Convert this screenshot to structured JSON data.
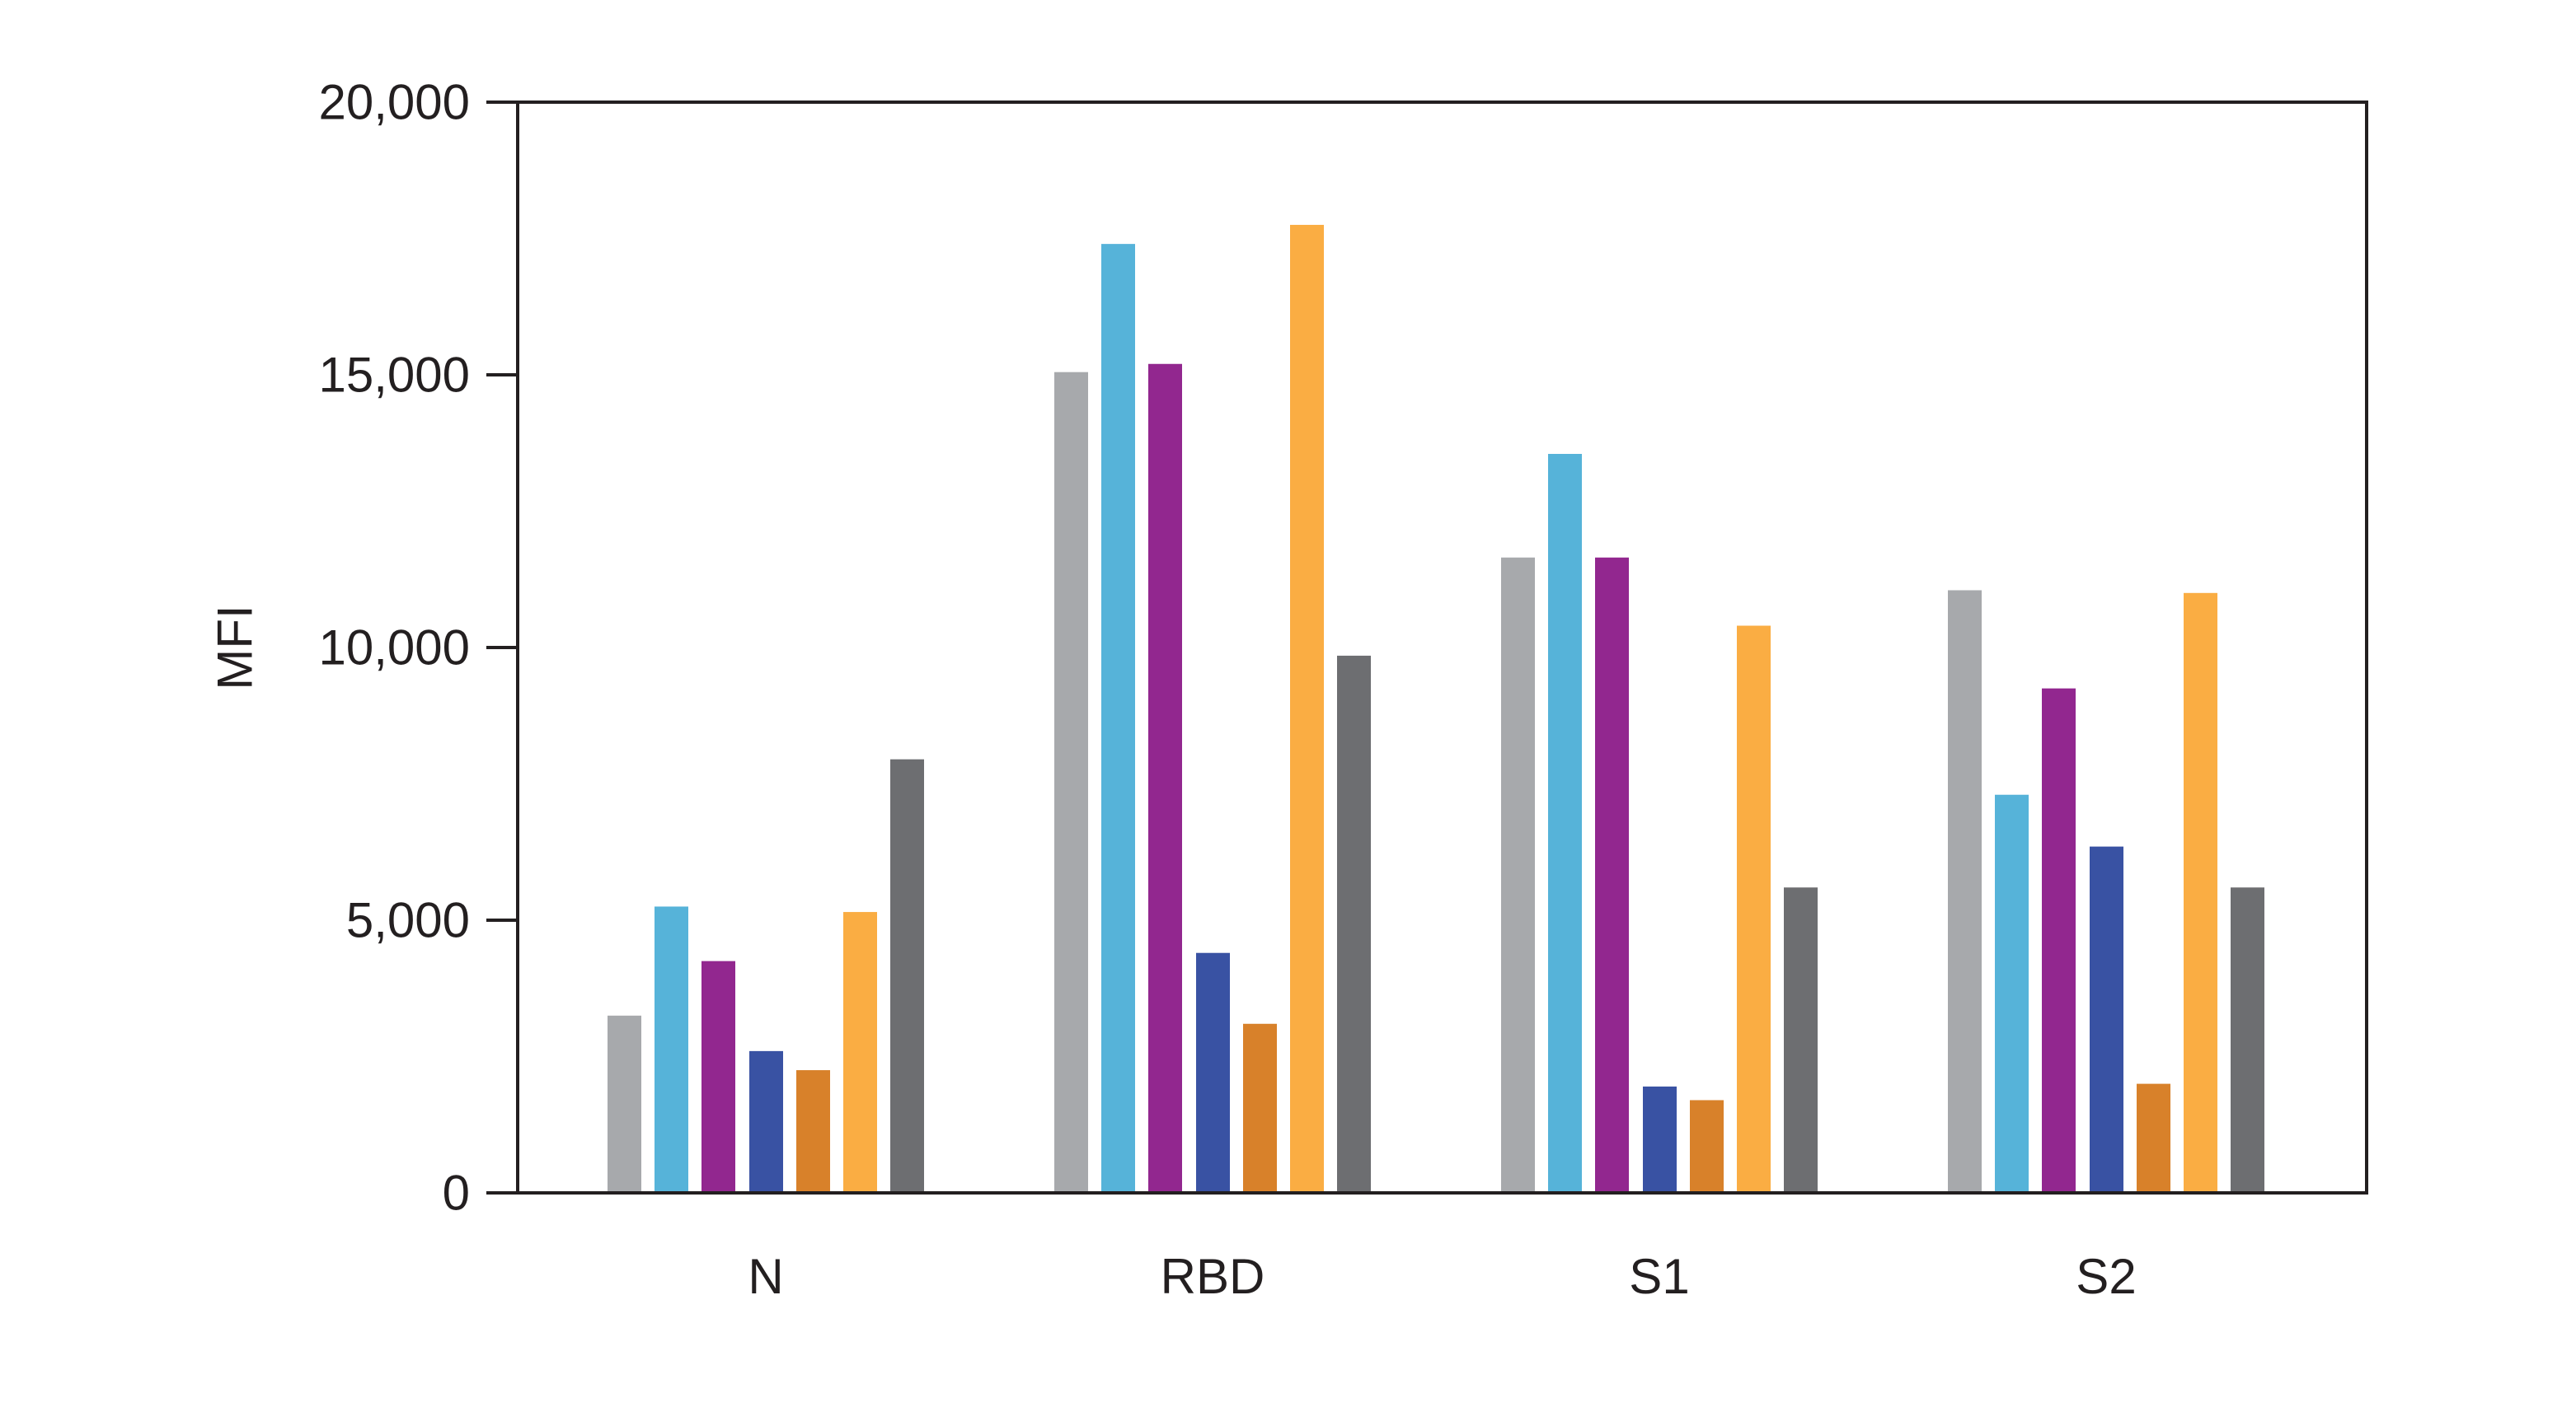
{
  "chart_data": {
    "type": "bar",
    "title": "",
    "xlabel": "",
    "ylabel": "MFI",
    "ylim": [
      0,
      20000
    ],
    "ytick_values": [
      0,
      5000,
      10000,
      15000,
      20000
    ],
    "ytick_labels": [
      "0",
      "5,000",
      "10,000",
      "15,000",
      "20,000"
    ],
    "categories": [
      "N",
      "RBD",
      "S1",
      "S2"
    ],
    "grid": false,
    "legend_position": "none",
    "axis_color": "#231F20",
    "background_color": "#FFFFFF",
    "series": [
      {
        "name": "gray",
        "color": "#A7A9AC",
        "values": [
          3250,
          15050,
          11650,
          11050
        ]
      },
      {
        "name": "cyan",
        "color": "#56B3D9",
        "values": [
          5250,
          17400,
          13550,
          7300
        ]
      },
      {
        "name": "purple",
        "color": "#92278F",
        "values": [
          4250,
          15200,
          11650,
          9250
        ]
      },
      {
        "name": "blue",
        "color": "#3952A3",
        "values": [
          2600,
          4400,
          1950,
          6350
        ]
      },
      {
        "name": "orange",
        "color": "#D8812A",
        "values": [
          2250,
          3100,
          1700,
          2000
        ]
      },
      {
        "name": "amber",
        "color": "#FAAD43",
        "values": [
          5150,
          17750,
          10400,
          11000
        ]
      },
      {
        "name": "dark-gray",
        "color": "#6D6E71",
        "values": [
          7950,
          9850,
          5600,
          5600
        ]
      }
    ]
  }
}
